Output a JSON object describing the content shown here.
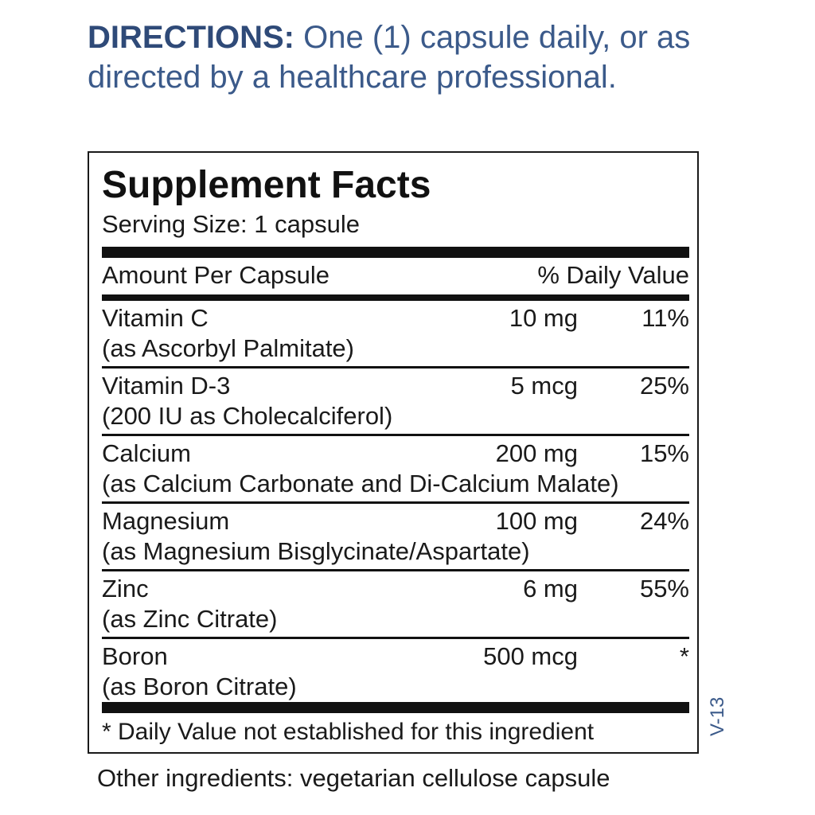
{
  "directions": {
    "label": "DIRECTIONS:",
    "text": "One (1) capsule daily, or as directed by a healthcare professional."
  },
  "facts": {
    "title": "Supplement Facts",
    "serving_size": "Serving Size: 1 capsule",
    "header_left": "Amount Per Capsule",
    "header_right": "% Daily Value",
    "rows": [
      {
        "name": "Vitamin C",
        "form": "(as Ascorbyl Palmitate)",
        "amount": "10 mg",
        "dv": "11%"
      },
      {
        "name": "Vitamin D-3",
        "form": "(200 IU as Cholecalciferol)",
        "amount": "5 mcg",
        "dv": "25%"
      },
      {
        "name": "Calcium",
        "form": "(as Calcium Carbonate and Di-Calcium Malate)",
        "amount": "200 mg",
        "dv": "15%"
      },
      {
        "name": "Magnesium",
        "form": "(as Magnesium Bisglycinate/Aspartate)",
        "amount": "100 mg",
        "dv": "24%"
      },
      {
        "name": "Zinc",
        "form": "(as Zinc Citrate)",
        "amount": "6 mg",
        "dv": "55%"
      },
      {
        "name": "Boron",
        "form": "(as Boron Citrate)",
        "amount": "500 mcg",
        "dv": "*"
      }
    ],
    "footnote": "* Daily Value not established for this ingredient"
  },
  "version": "V-13",
  "other_ingredients": "Other ingredients: vegetarian cellulose capsule"
}
